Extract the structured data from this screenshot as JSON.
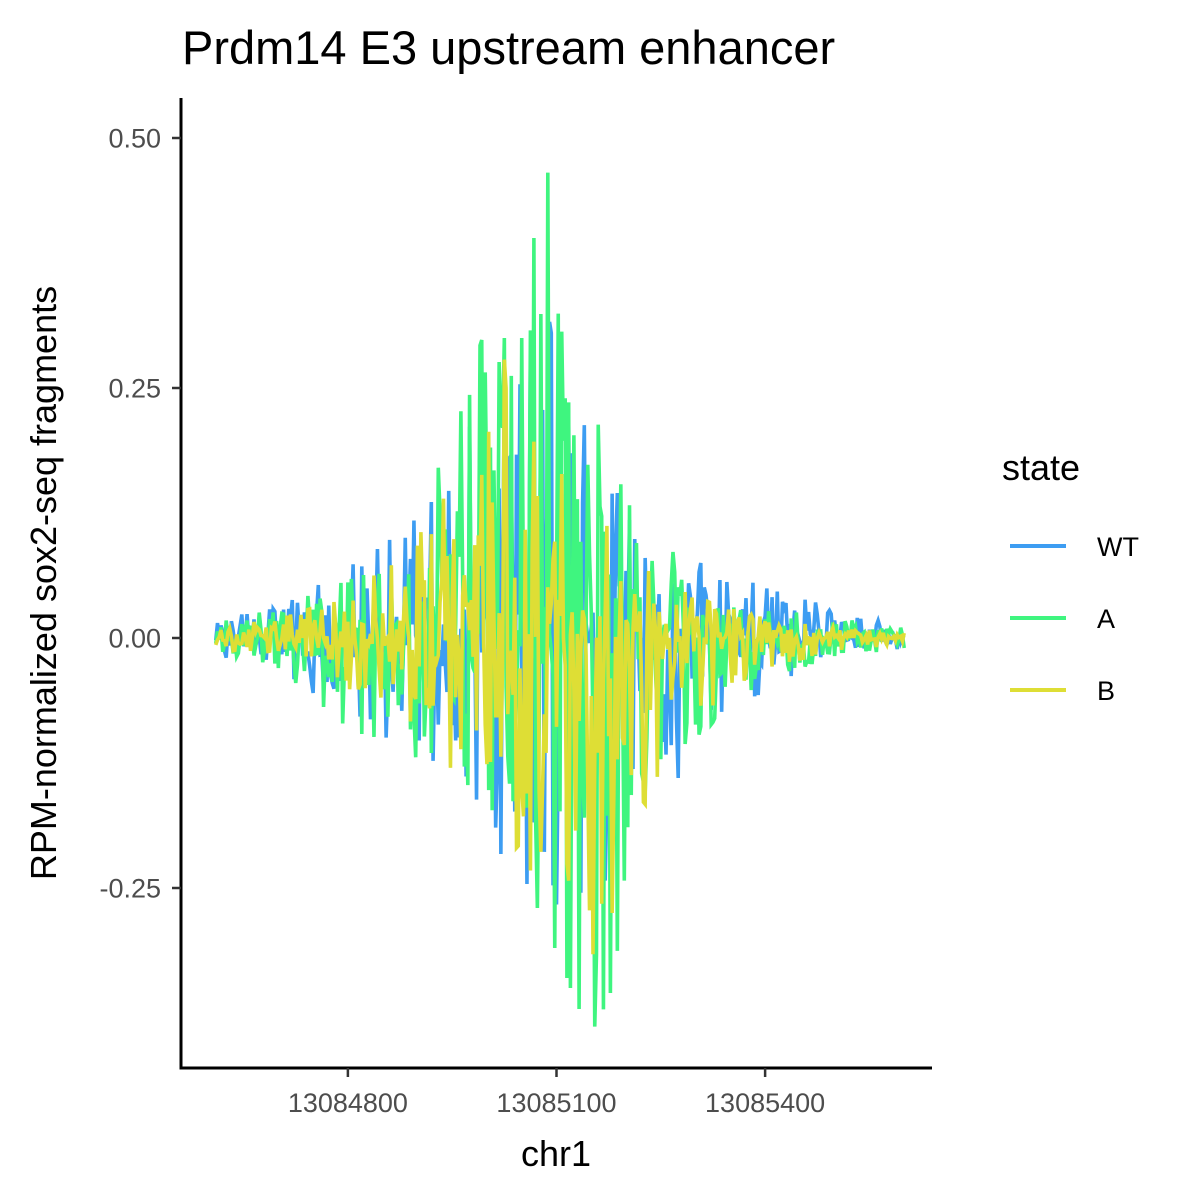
{
  "chart_data": {
    "type": "line",
    "title": "Prdm14 E3 upstream enhancer",
    "xlabel": "chr1",
    "ylabel": "RPM-normalized sox2-seq fragments",
    "xlim": [
      13084560,
      13085640
    ],
    "ylim": [
      -0.43,
      0.54
    ],
    "x_ticks": [
      13084800,
      13085100,
      13085400
    ],
    "x_tick_labels": [
      "13084800",
      "13085100",
      "13085400"
    ],
    "y_ticks": [
      -0.25,
      0.0,
      0.25,
      0.5
    ],
    "y_tick_labels": [
      "-0.25",
      "0.00",
      "0.25",
      "0.50"
    ],
    "grid": false,
    "legend": {
      "title": "state",
      "position": "right"
    },
    "x_start": 13084610,
    "x_end": 13085600,
    "series": [
      {
        "name": "WT",
        "color": "#3d9df2",
        "envelope_upper": [
          [
            13084610,
            0.02
          ],
          [
            13084700,
            0.03
          ],
          [
            13084800,
            0.07
          ],
          [
            13084900,
            0.12
          ],
          [
            13084960,
            0.2
          ],
          [
            13085000,
            0.23
          ],
          [
            13085050,
            0.28
          ],
          [
            13085080,
            0.4
          ],
          [
            13085100,
            0.3
          ],
          [
            13085140,
            0.24
          ],
          [
            13085200,
            0.12
          ],
          [
            13085300,
            0.08
          ],
          [
            13085400,
            0.05
          ],
          [
            13085500,
            0.03
          ],
          [
            13085600,
            0.01
          ]
        ],
        "envelope_lower": [
          [
            13084610,
            -0.02
          ],
          [
            13084700,
            -0.03
          ],
          [
            13084800,
            -0.08
          ],
          [
            13084900,
            -0.12
          ],
          [
            13084960,
            -0.16
          ],
          [
            13085000,
            -0.2
          ],
          [
            13085050,
            -0.24
          ],
          [
            13085100,
            -0.28
          ],
          [
            13085130,
            -0.3
          ],
          [
            13085160,
            -0.27
          ],
          [
            13085200,
            -0.2
          ],
          [
            13085300,
            -0.12
          ],
          [
            13085400,
            -0.05
          ],
          [
            13085500,
            -0.02
          ],
          [
            13085600,
            -0.01
          ]
        ]
      },
      {
        "name": "A",
        "color": "#3ff57f",
        "envelope_upper": [
          [
            13084610,
            0.015
          ],
          [
            13084700,
            0.03
          ],
          [
            13084800,
            0.06
          ],
          [
            13084880,
            0.1
          ],
          [
            13084960,
            0.22
          ],
          [
            13084990,
            0.3
          ],
          [
            13085050,
            0.3
          ],
          [
            13085085,
            0.5
          ],
          [
            13085110,
            0.3
          ],
          [
            13085140,
            0.25
          ],
          [
            13085200,
            0.14
          ],
          [
            13085300,
            0.06
          ],
          [
            13085400,
            0.03
          ],
          [
            13085500,
            0.02
          ],
          [
            13085600,
            0.01
          ]
        ],
        "envelope_lower": [
          [
            13084610,
            -0.015
          ],
          [
            13084700,
            -0.03
          ],
          [
            13084800,
            -0.09
          ],
          [
            13084900,
            -0.12
          ],
          [
            13084960,
            -0.15
          ],
          [
            13085000,
            -0.2
          ],
          [
            13085060,
            -0.25
          ],
          [
            13085110,
            -0.33
          ],
          [
            13085150,
            -0.41
          ],
          [
            13085180,
            -0.35
          ],
          [
            13085230,
            -0.2
          ],
          [
            13085300,
            -0.1
          ],
          [
            13085400,
            -0.04
          ],
          [
            13085500,
            -0.02
          ],
          [
            13085600,
            -0.01
          ]
        ]
      },
      {
        "name": "B",
        "color": "#dede35",
        "envelope_upper": [
          [
            13084610,
            0.01
          ],
          [
            13084700,
            0.02
          ],
          [
            13084800,
            0.04
          ],
          [
            13084900,
            0.1
          ],
          [
            13084960,
            0.17
          ],
          [
            13085000,
            0.22
          ],
          [
            13085030,
            0.29
          ],
          [
            13085060,
            0.22
          ],
          [
            13085100,
            0.2
          ],
          [
            13085140,
            0.15
          ],
          [
            13085200,
            0.08
          ],
          [
            13085300,
            0.04
          ],
          [
            13085400,
            0.02
          ],
          [
            13085500,
            0.01
          ],
          [
            13085600,
            0.005
          ]
        ],
        "envelope_lower": [
          [
            13084610,
            -0.01
          ],
          [
            13084700,
            -0.02
          ],
          [
            13084800,
            -0.05
          ],
          [
            13084900,
            -0.1
          ],
          [
            13084960,
            -0.14
          ],
          [
            13085000,
            -0.17
          ],
          [
            13085060,
            -0.23
          ],
          [
            13085110,
            -0.28
          ],
          [
            13085150,
            -0.32
          ],
          [
            13085190,
            -0.26
          ],
          [
            13085230,
            -0.16
          ],
          [
            13085300,
            -0.08
          ],
          [
            13085400,
            -0.03
          ],
          [
            13085500,
            -0.015
          ],
          [
            13085600,
            -0.005
          ]
        ]
      }
    ]
  }
}
